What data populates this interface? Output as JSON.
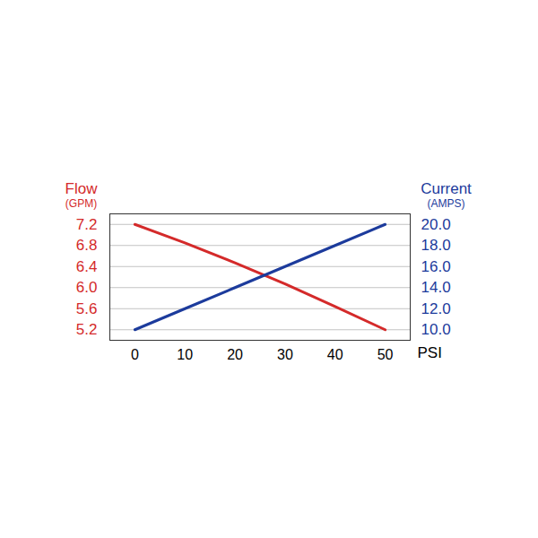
{
  "chart_data": {
    "type": "line",
    "xlabel": "PSI",
    "ylabel": [
      "Flow",
      "(GPM)"
    ],
    "y2label": [
      "Current",
      "(AMPS)"
    ],
    "x": [
      0,
      10,
      20,
      30,
      40,
      50
    ],
    "xlim": [
      -5,
      55
    ],
    "xticks": [
      0,
      10,
      20,
      30,
      40,
      50
    ],
    "ylim": [
      5.0,
      7.4
    ],
    "yticks": [
      5.2,
      5.6,
      {
        "value": 6,
        "label": "6.0"
      },
      6.4,
      6.8,
      7.2
    ],
    "y2lim": [
      9,
      21
    ],
    "y2ticks": [
      {
        "value": 10,
        "label": "10.0"
      },
      {
        "value": 12,
        "label": "12.0"
      },
      {
        "value": 14,
        "label": "14.0"
      },
      {
        "value": 16,
        "label": "16.0"
      },
      {
        "value": 18,
        "label": "18.0"
      },
      {
        "value": 20,
        "label": "20.0"
      }
    ],
    "grid": true,
    "series": [
      {
        "color": "#d42a2a",
        "values": [
          7.2,
          6.85,
          6.47,
          6.07,
          5.64,
          5.2
        ]
      },
      {
        "color": "#1c3b9c",
        "axis": "y2",
        "values": [
          10,
          12,
          14,
          16,
          18,
          20
        ]
      }
    ]
  }
}
